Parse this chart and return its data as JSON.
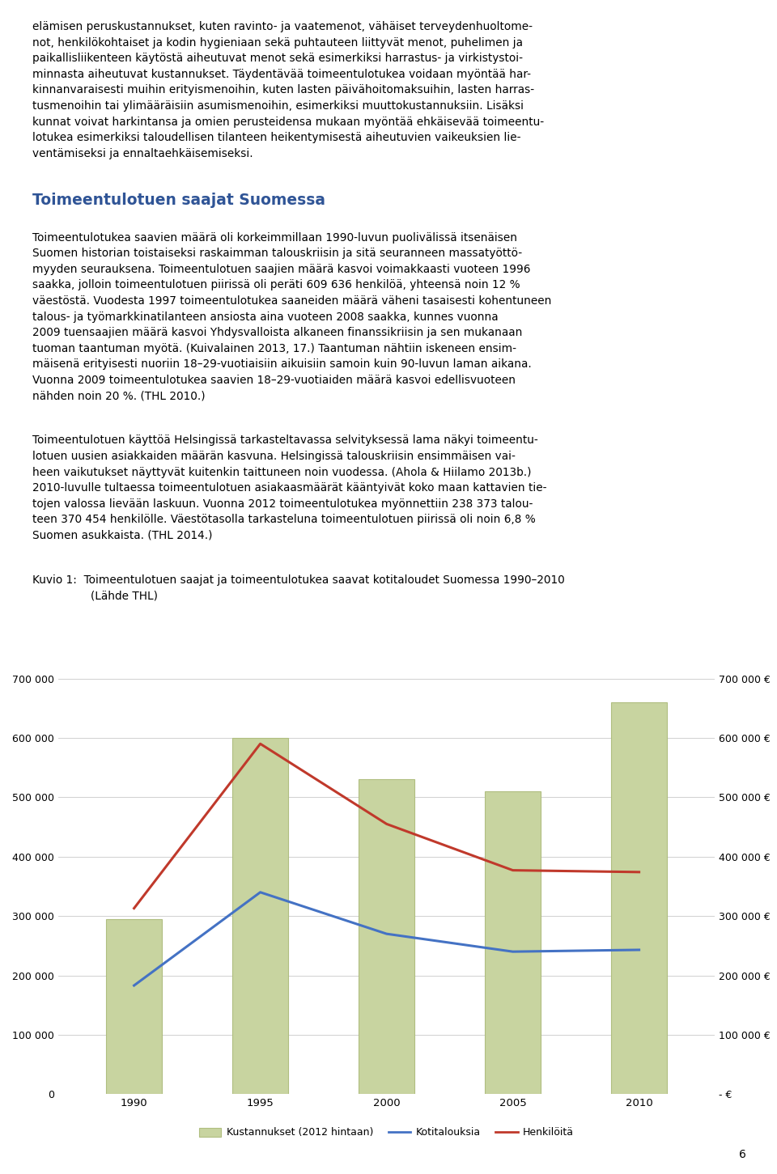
{
  "line1": "elämisen peruskustannukset, kuten ravinto- ja vaatemenot, vähäiset terveydenhuoltome-",
  "line2": "not, henkilökohtaiset ja kodin hygieniaan sekä puhtauteen liittyvät menot, puhelimen ja",
  "line3": "paikallisliikenteen käytöstä aiheutuvat menot sekä esimerkiksi harrastus- ja virkistystoi-",
  "line4": "minnasta aiheutuvat kustannukset. Täydentävää toimeentulotukea voidaan myöntää har-",
  "line5": "kinnanvaraisesti muihin erityismenoihin, kuten lasten päivähoitomaksuihin, lasten harras-",
  "line6": "tusmenoihin tai ylimääräisiin asumismenoihin, esimerkiksi muuttokustannuksiin. Lisäksi",
  "line7": "kunnat voivat harkintansa ja omien perusteidensa mukaan myöntää ehkäisevää toimeentu-",
  "line8": "lotukea esimerkiksi taloudellisen tilanteen heikentymisestä aiheutuvien vaikeuksien lie-",
  "line9": "ventämiseksi ja ennaltaehkäisemiseksi.",
  "heading": "Toimeentulotuen saajat Suomessa",
  "p1_lines": [
    "Toimeentulotukea saavien määrä oli korkeimmillaan 1990-luvun puolivälissä itsenäisen",
    "Suomen historian toistaiseksi raskaimman talouskriisin ja sitä seuranneen massatyöttö-",
    "myyden seurauksena. Toimeentulotuen saajien määrä kasvoi voimakkaasti vuoteen 1996",
    "saakka, jolloin toimeentulotuen piirissä oli peräti 609 636 henkilöä, yhteensä noin 12 %",
    "väestöstä. Vuodesta 1997 toimeentulotukea saaneiden määrä väheni tasaisesti kohentuneen",
    "talous- ja työmarkkinatilanteen ansiosta aina vuoteen 2008 saakka, kunnes vuonna",
    "2009 tuensaajien määrä kasvoi Yhdysvalloista alkaneen finanssikriisin ja sen mukanaan",
    "tuoman taantuman myötä. (Kuivalainen 2013, 17.) Taantuman nähtiin iskeneen ensim-",
    "mäisenä erityisesti nuoriin 18–29-vuotiaisiin aikuisiin samoin kuin 90-luvun laman aikana.",
    "Vuonna 2009 toimeentulotukea saavien 18–29-vuotiaiden määrä kasvoi edellisvuoteen",
    "nähden noin 20 %. (THL 2010.)"
  ],
  "p2_lines": [
    "Toimeentulotuen käyttöä Helsingissä tarkasteltavassa selvityksessä lama näkyi toimeentu-",
    "lotuen uusien asiakkaiden määrän kasvuna. Helsingissä talouskriisin ensimmäisen vai-",
    "heen vaikutukset näyttyvät kuitenkin taittuneen noin vuodessa. (Ahola & Hiilamo 2013b.)",
    "2010-luvulle tultaessa toimeentulotuen asiakaasmäärät kääntyivät koko maan kattavien tie-",
    "tojen valossa lievään laskuun. Vuonna 2012 toimeentulotukea myönnettiin 238 373 talou-",
    "teen 370 454 henkilölle. Väestötasolla tarkasteluna toimeentulotuen piirissä oli noin 6,8 %",
    "Suomen asukkaista. (THL 2014.)"
  ],
  "caption_label": "Kuvio 1:",
  "caption_text": "Toimeentulotuen saajat ja toimeentulotukea saavat kotitaloudet Suomessa 1990–2010",
  "caption_source": "(Lähde THL)",
  "years": [
    1990,
    1995,
    2000,
    2005,
    2010
  ],
  "kustannukset": [
    295000,
    600000,
    530000,
    510000,
    660000
  ],
  "kotitalouksia": [
    183000,
    340000,
    270000,
    240000,
    243000
  ],
  "henkiloita": [
    313000,
    590000,
    455000,
    377000,
    374000
  ],
  "bar_color": "#c8d4a0",
  "bar_edge_color": "#b0be80",
  "kotitalouksia_color": "#4472c4",
  "henkiloita_color": "#c0392b",
  "ylim": [
    0,
    700000
  ],
  "yticks": [
    0,
    100000,
    200000,
    300000,
    400000,
    500000,
    600000,
    700000
  ],
  "ytick_labels_left": [
    "0",
    "100 000",
    "200 000",
    "300 000",
    "400 000",
    "500 000",
    "600 000",
    "700 000"
  ],
  "ytick_labels_right": [
    "- €",
    "100 000 €",
    "200 000 €",
    "300 000 €",
    "400 000 €",
    "500 000 €",
    "600 000 €",
    "700 000 €"
  ],
  "legend_labels": [
    "Kustannukset (2012 hintaan)",
    "Kotitalouksia",
    "Henkilöitä"
  ],
  "background_color": "#ffffff",
  "grid_color": "#d0d0d0",
  "page_number": "6",
  "text_color": "#000000",
  "heading_color": "#2F5496",
  "font_size": 9.8,
  "heading_font_size": 13.5
}
